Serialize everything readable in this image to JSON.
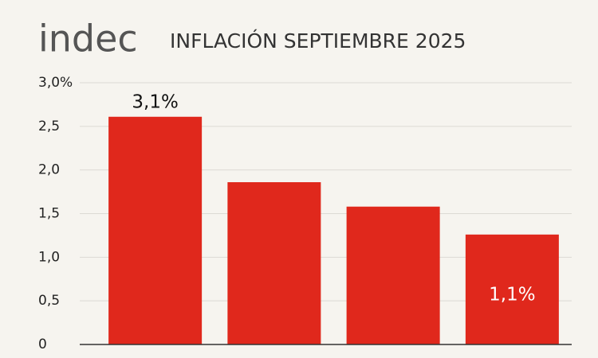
{
  "chart_data": {
    "type": "bar",
    "logo": "indec",
    "title": "INFLACIÓN SEPTIEMBRE 2025",
    "categories": [
      null,
      null,
      null,
      null
    ],
    "values": [
      2.61,
      1.86,
      1.58,
      1.26
    ],
    "color": "#e0281c",
    "annotations": [
      "3,1%",
      "1,1%"
    ],
    "ylim": [
      0,
      3
    ],
    "yticks": [
      0,
      {
        "value": 0.5,
        "label": "0,5"
      },
      {
        "value": 1,
        "label": "1,0"
      },
      {
        "value": 1.5,
        "label": "1,5"
      },
      {
        "value": 2,
        "label": "2,0"
      },
      {
        "value": 2.5,
        "label": "2,5"
      },
      {
        "value": 3,
        "label": "3,0%"
      }
    ],
    "grid": true
  }
}
